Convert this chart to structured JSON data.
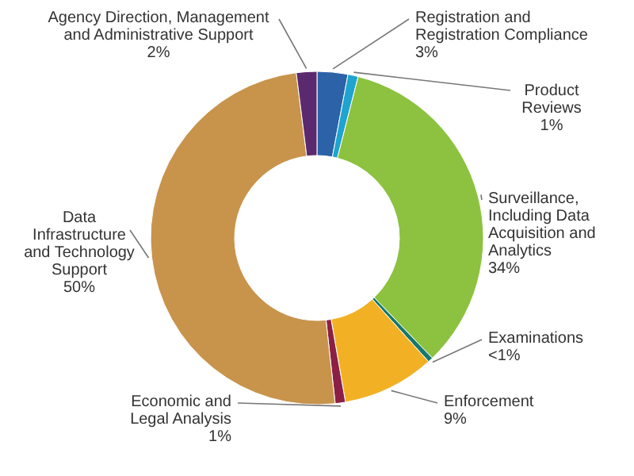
{
  "chart_data": {
    "type": "donut",
    "categories": [
      "Registration and Registration Compliance",
      "Product Reviews",
      "Surveillance, Including Data Acquisition and Analytics",
      "Examinations",
      "Enforcement",
      "Economic and Legal Analysis",
      "Data Infrastructure and Technology Support",
      "Agency Direction, Management and Administrative Support"
    ],
    "values": [
      3,
      1,
      34,
      0.5,
      9,
      1,
      50,
      2
    ],
    "value_labels": [
      "3%",
      "1%",
      "34%",
      "<1%",
      "9%",
      "1%",
      "50%",
      "2%"
    ],
    "colors": [
      "#2b62a8",
      "#1fa3cf",
      "#8cc23f",
      "#17786b",
      "#f2b124",
      "#8c1f45",
      "#c8934b",
      "#5b2a6e"
    ]
  }
}
